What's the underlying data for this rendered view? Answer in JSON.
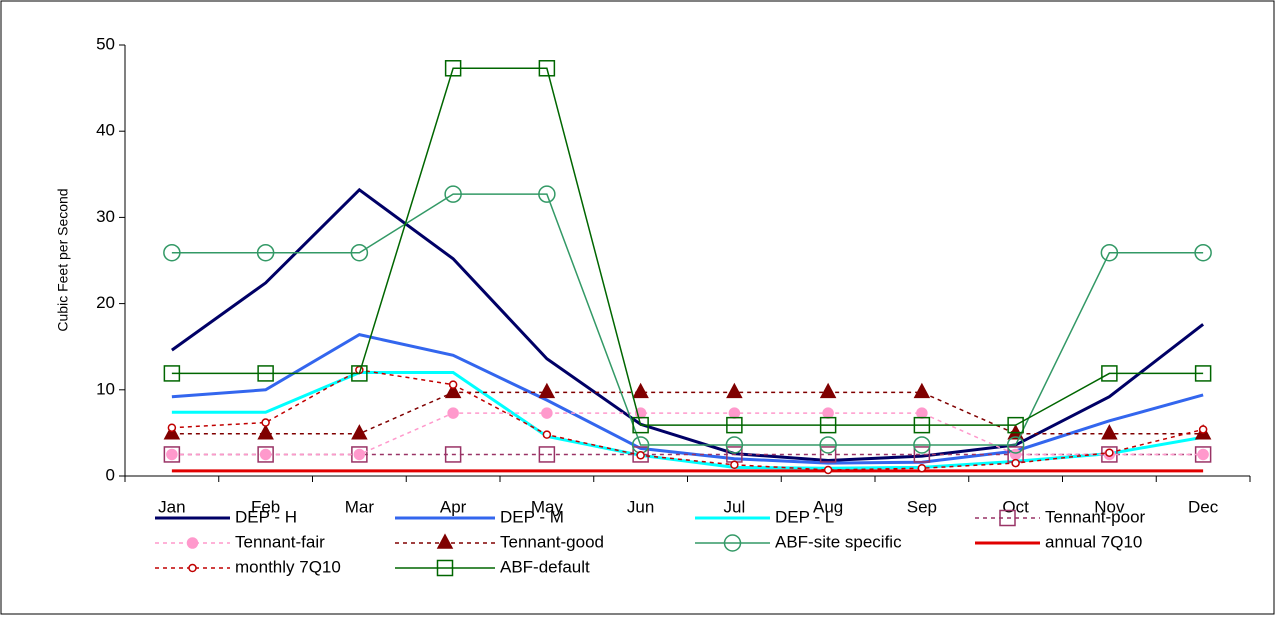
{
  "chart_data": {
    "type": "line",
    "y_label": "Cubic Feet per Second",
    "categories": [
      "Jan",
      "Feb",
      "Mar",
      "Apr",
      "May",
      "Jun",
      "Jul",
      "Aug",
      "Sep",
      "Oct",
      "Nov",
      "Dec"
    ],
    "ylim": [
      0,
      50
    ],
    "yticks": [
      0,
      10,
      20,
      30,
      40,
      50
    ],
    "series": [
      {
        "name": "DEP - H",
        "color": "#000066",
        "width": 3,
        "dash": false,
        "marker": "none",
        "values": [
          14.6,
          22.4,
          33.2,
          25.2,
          13.6,
          6.0,
          2.6,
          1.8,
          2.3,
          3.6,
          9.2,
          17.6
        ]
      },
      {
        "name": "DEP - M",
        "color": "#3366ee",
        "width": 3,
        "dash": false,
        "marker": "none",
        "values": [
          9.2,
          10.0,
          16.4,
          14.0,
          8.8,
          3.2,
          2.0,
          1.5,
          1.6,
          2.9,
          6.4,
          9.4
        ]
      },
      {
        "name": "DEP - L",
        "color": "#00ffff",
        "width": 3,
        "dash": false,
        "marker": "none",
        "values": [
          7.4,
          7.4,
          12.0,
          12.0,
          4.6,
          2.4,
          1.0,
          0.9,
          1.0,
          1.7,
          2.6,
          4.5
        ]
      },
      {
        "name": "Tennant-poor",
        "color": "#993366",
        "width": 1.5,
        "dash": true,
        "marker": "open-square",
        "values": [
          2.5,
          2.5,
          2.5,
          2.5,
          2.5,
          2.5,
          2.5,
          2.5,
          2.5,
          2.5,
          2.5,
          2.5
        ]
      },
      {
        "name": "Tennant-fair",
        "color": "#ff99cc",
        "width": 1.5,
        "dash": true,
        "marker": "filled-circle",
        "values": [
          2.5,
          2.5,
          2.5,
          7.3,
          7.3,
          7.3,
          7.3,
          7.3,
          7.3,
          2.5,
          2.5,
          2.5
        ]
      },
      {
        "name": "Tennant-good",
        "color": "#800000",
        "width": 1.5,
        "dash": true,
        "marker": "filled-triangle",
        "values": [
          4.9,
          4.9,
          4.9,
          9.7,
          9.7,
          9.7,
          9.7,
          9.7,
          9.7,
          4.9,
          4.9,
          4.9
        ]
      },
      {
        "name": "ABF-site specific",
        "color": "#339966",
        "width": 1.5,
        "dash": false,
        "marker": "open-circle",
        "values": [
          25.9,
          25.9,
          25.9,
          32.7,
          32.7,
          3.6,
          3.6,
          3.6,
          3.6,
          3.6,
          25.9,
          25.9
        ]
      },
      {
        "name": "annual 7Q10",
        "color": "#e00000",
        "width": 3,
        "dash": false,
        "marker": "none",
        "values": [
          0.6,
          0.6,
          0.6,
          0.6,
          0.6,
          0.6,
          0.6,
          0.6,
          0.6,
          0.6,
          0.6,
          0.6
        ]
      },
      {
        "name": "monthly 7Q10",
        "color": "#c00000",
        "width": 1.5,
        "dash": true,
        "marker": "small-open-circle",
        "values": [
          5.6,
          6.2,
          12.3,
          10.6,
          4.8,
          2.4,
          1.3,
          0.7,
          0.9,
          1.5,
          2.7,
          5.4
        ]
      },
      {
        "name": "ABF-default",
        "color": "#006600",
        "width": 1.5,
        "dash": false,
        "marker": "open-square",
        "values": [
          11.9,
          11.9,
          11.9,
          47.3,
          47.3,
          5.9,
          5.9,
          5.9,
          5.9,
          5.9,
          11.9,
          11.9
        ]
      }
    ]
  }
}
